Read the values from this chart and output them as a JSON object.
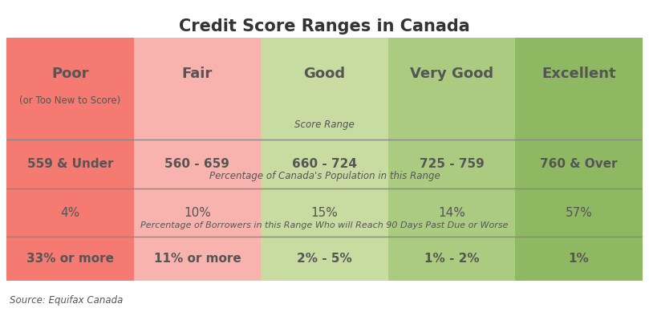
{
  "title": "Credit Score Ranges in Canada",
  "source": "Source: Equifax Canada",
  "columns": [
    "Poor",
    "Fair",
    "Good",
    "Very Good",
    "Excellent"
  ],
  "subtitles": [
    "(or Too New to Score)",
    "",
    "",
    "",
    ""
  ],
  "score_ranges": [
    "559 & Under",
    "560 - 659",
    "660 - 724",
    "725 - 759",
    "760 & Over"
  ],
  "population_pct": [
    "4%",
    "10%",
    "15%",
    "14%",
    "57%"
  ],
  "borrower_pct": [
    "33% or more",
    "11% or more",
    "2% - 5%",
    "1% - 2%",
    "1%"
  ],
  "colors": [
    "#f47a72",
    "#f9b3ae",
    "#c8dba0",
    "#aacb80",
    "#8fb862"
  ],
  "row_label_score": "Score Range",
  "row_label_population": "Percentage of Canada's Population in this Range",
  "row_label_borrower": "Percentage of Borrowers in this Range Who will Reach 90 Days Past Due or Worse",
  "bg_color": "#ffffff",
  "text_color": "#555555",
  "title_fontsize": 15,
  "label_fontsize": 8.5
}
